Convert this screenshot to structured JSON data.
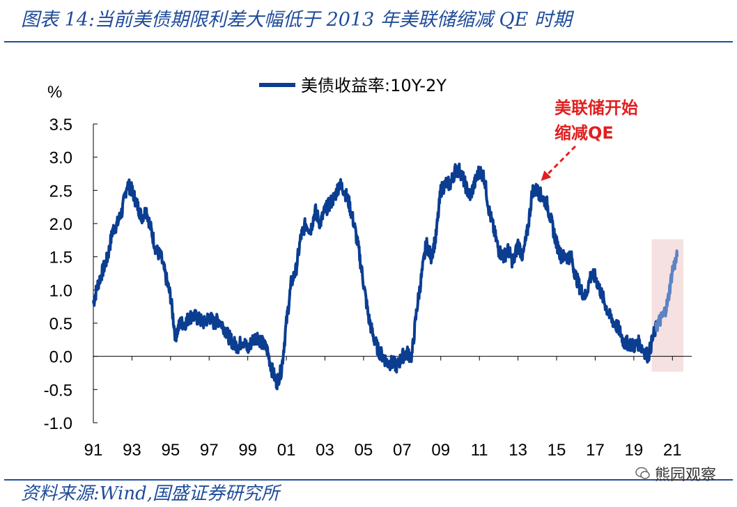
{
  "header": {
    "title": "图表 14:当前美债期限利差大幅低于 2013 年美联储缩减 QE 时期"
  },
  "footer": {
    "source": "资料来源:Wind,国盛证券研究所",
    "watermark": "熊园观察"
  },
  "colors": {
    "line": "#0b3d91",
    "line_recent": "#5b83c4",
    "highlight": "#f2d9d9",
    "annotation": "#e02020",
    "rule": "#1f4c9a"
  },
  "chart_data": {
    "type": "line",
    "title": "",
    "ylabel": "%",
    "xlabel": "",
    "ylim": [
      -1.0,
      3.5
    ],
    "xlim": [
      1991.0,
      2022.0
    ],
    "yticks": [
      3.5,
      3.0,
      2.5,
      2.0,
      1.5,
      1.0,
      0.5,
      0.0,
      -0.5,
      -1.0
    ],
    "ytick_labels": [
      "3.5",
      "3.0",
      "2.5",
      "2.0",
      "1.5",
      "1.0",
      "0.5",
      "0.0",
      "-0.5",
      "-1.0"
    ],
    "xticks": [
      1991,
      1993,
      1995,
      1997,
      1999,
      2001,
      2003,
      2005,
      2007,
      2009,
      2011,
      2013,
      2015,
      2017,
      2019,
      2021
    ],
    "xtick_labels": [
      "91",
      "93",
      "95",
      "97",
      "99",
      "01",
      "03",
      "05",
      "07",
      "09",
      "11",
      "13",
      "15",
      "17",
      "19",
      "21"
    ],
    "grid": false,
    "legend": {
      "position": "top-center",
      "entries": [
        "美债收益率:10Y-2Y"
      ]
    },
    "series": [
      {
        "name": "美债收益率:10Y-2Y",
        "x": [
          1991.0,
          1991.25,
          1991.5,
          1991.75,
          1992.0,
          1992.25,
          1992.5,
          1992.75,
          1993.0,
          1993.25,
          1993.5,
          1993.75,
          1994.0,
          1994.25,
          1994.5,
          1994.75,
          1995.0,
          1995.25,
          1995.5,
          1995.75,
          1996.0,
          1996.25,
          1996.5,
          1996.75,
          1997.0,
          1997.25,
          1997.5,
          1997.75,
          1998.0,
          1998.25,
          1998.5,
          1998.75,
          1999.0,
          1999.25,
          1999.5,
          1999.75,
          2000.0,
          2000.25,
          2000.5,
          2000.75,
          2001.0,
          2001.25,
          2001.5,
          2001.75,
          2002.0,
          2002.25,
          2002.5,
          2002.75,
          2003.0,
          2003.25,
          2003.5,
          2003.75,
          2004.0,
          2004.25,
          2004.5,
          2004.75,
          2005.0,
          2005.25,
          2005.5,
          2005.75,
          2006.0,
          2006.25,
          2006.5,
          2006.75,
          2007.0,
          2007.25,
          2007.5,
          2007.75,
          2008.0,
          2008.25,
          2008.5,
          2008.75,
          2009.0,
          2009.25,
          2009.5,
          2009.75,
          2010.0,
          2010.25,
          2010.5,
          2010.75,
          2011.0,
          2011.25,
          2011.5,
          2011.75,
          2012.0,
          2012.25,
          2012.5,
          2012.75,
          2013.0,
          2013.25,
          2013.5,
          2013.75,
          2014.0,
          2014.25,
          2014.5,
          2014.75,
          2015.0,
          2015.25,
          2015.5,
          2015.75,
          2016.0,
          2016.25,
          2016.5,
          2016.75,
          2017.0,
          2017.25,
          2017.5,
          2017.75,
          2018.0,
          2018.25,
          2018.5,
          2018.75,
          2019.0,
          2019.25,
          2019.5,
          2019.75,
          2020.0,
          2020.25,
          2020.5,
          2020.75,
          2021.0,
          2021.25
        ],
        "values": [
          0.8,
          1.1,
          1.3,
          1.5,
          1.9,
          2.0,
          2.2,
          2.6,
          2.5,
          2.3,
          2.1,
          2.2,
          1.9,
          1.6,
          1.5,
          1.2,
          0.9,
          0.3,
          0.5,
          0.5,
          0.6,
          0.6,
          0.55,
          0.5,
          0.6,
          0.5,
          0.55,
          0.45,
          0.3,
          0.2,
          0.15,
          0.25,
          0.1,
          0.25,
          0.3,
          0.2,
          0.1,
          -0.2,
          -0.4,
          -0.2,
          0.5,
          1.1,
          1.3,
          1.8,
          2.0,
          1.9,
          2.2,
          2.0,
          2.2,
          2.3,
          2.4,
          2.6,
          2.5,
          2.3,
          2.0,
          1.6,
          1.1,
          0.6,
          0.3,
          0.1,
          0.0,
          -0.1,
          -0.1,
          -0.15,
          0.0,
          0.05,
          0.0,
          0.7,
          1.2,
          1.7,
          1.5,
          1.8,
          2.5,
          2.6,
          2.6,
          2.8,
          2.8,
          2.6,
          2.4,
          2.6,
          2.8,
          2.7,
          2.2,
          1.9,
          1.6,
          1.5,
          1.6,
          1.4,
          1.7,
          1.5,
          1.9,
          2.5,
          2.5,
          2.4,
          2.3,
          2.0,
          1.7,
          1.5,
          1.5,
          1.5,
          1.2,
          1.0,
          0.9,
          1.2,
          1.2,
          1.0,
          0.8,
          0.6,
          0.5,
          0.4,
          0.2,
          0.2,
          0.15,
          0.2,
          0.1,
          0.0,
          0.3,
          0.5,
          0.6,
          0.8,
          1.3,
          1.5
        ]
      }
    ],
    "highlight_region": {
      "x": [
        2020.0,
        2022.0
      ],
      "y": [
        0.0,
        1.7
      ]
    },
    "annotations": [
      {
        "lines": [
          "美联储开始",
          "缩减QE"
        ],
        "points_to": {
          "x": 2013.9,
          "y": 2.6
        }
      }
    ]
  }
}
